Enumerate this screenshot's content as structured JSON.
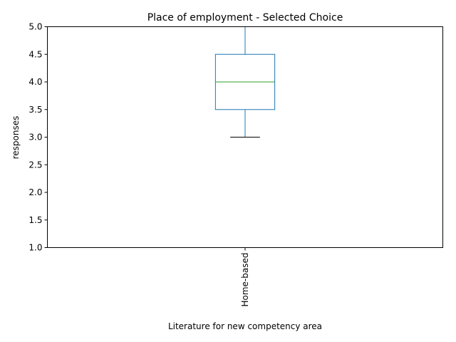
{
  "chart_data": {
    "type": "box",
    "title": "Place of employment - Selected Choice",
    "xlabel": "Literature for new competency area",
    "ylabel": "responses",
    "categories": [
      "Home-based"
    ],
    "boxes": [
      {
        "name": "Home-based",
        "whisker_low": 3.0,
        "q1": 3.5,
        "median": 4.0,
        "q3": 4.5,
        "whisker_high": 5.0
      }
    ],
    "ylim": [
      1.0,
      5.0
    ],
    "yticks": [
      "1.0",
      "1.5",
      "2.0",
      "2.5",
      "3.0",
      "3.5",
      "4.0",
      "4.5",
      "5.0"
    ],
    "grid": false,
    "colors": {
      "box": "#1f77b4",
      "median": "#2ca02c",
      "cap": "#000000"
    }
  }
}
